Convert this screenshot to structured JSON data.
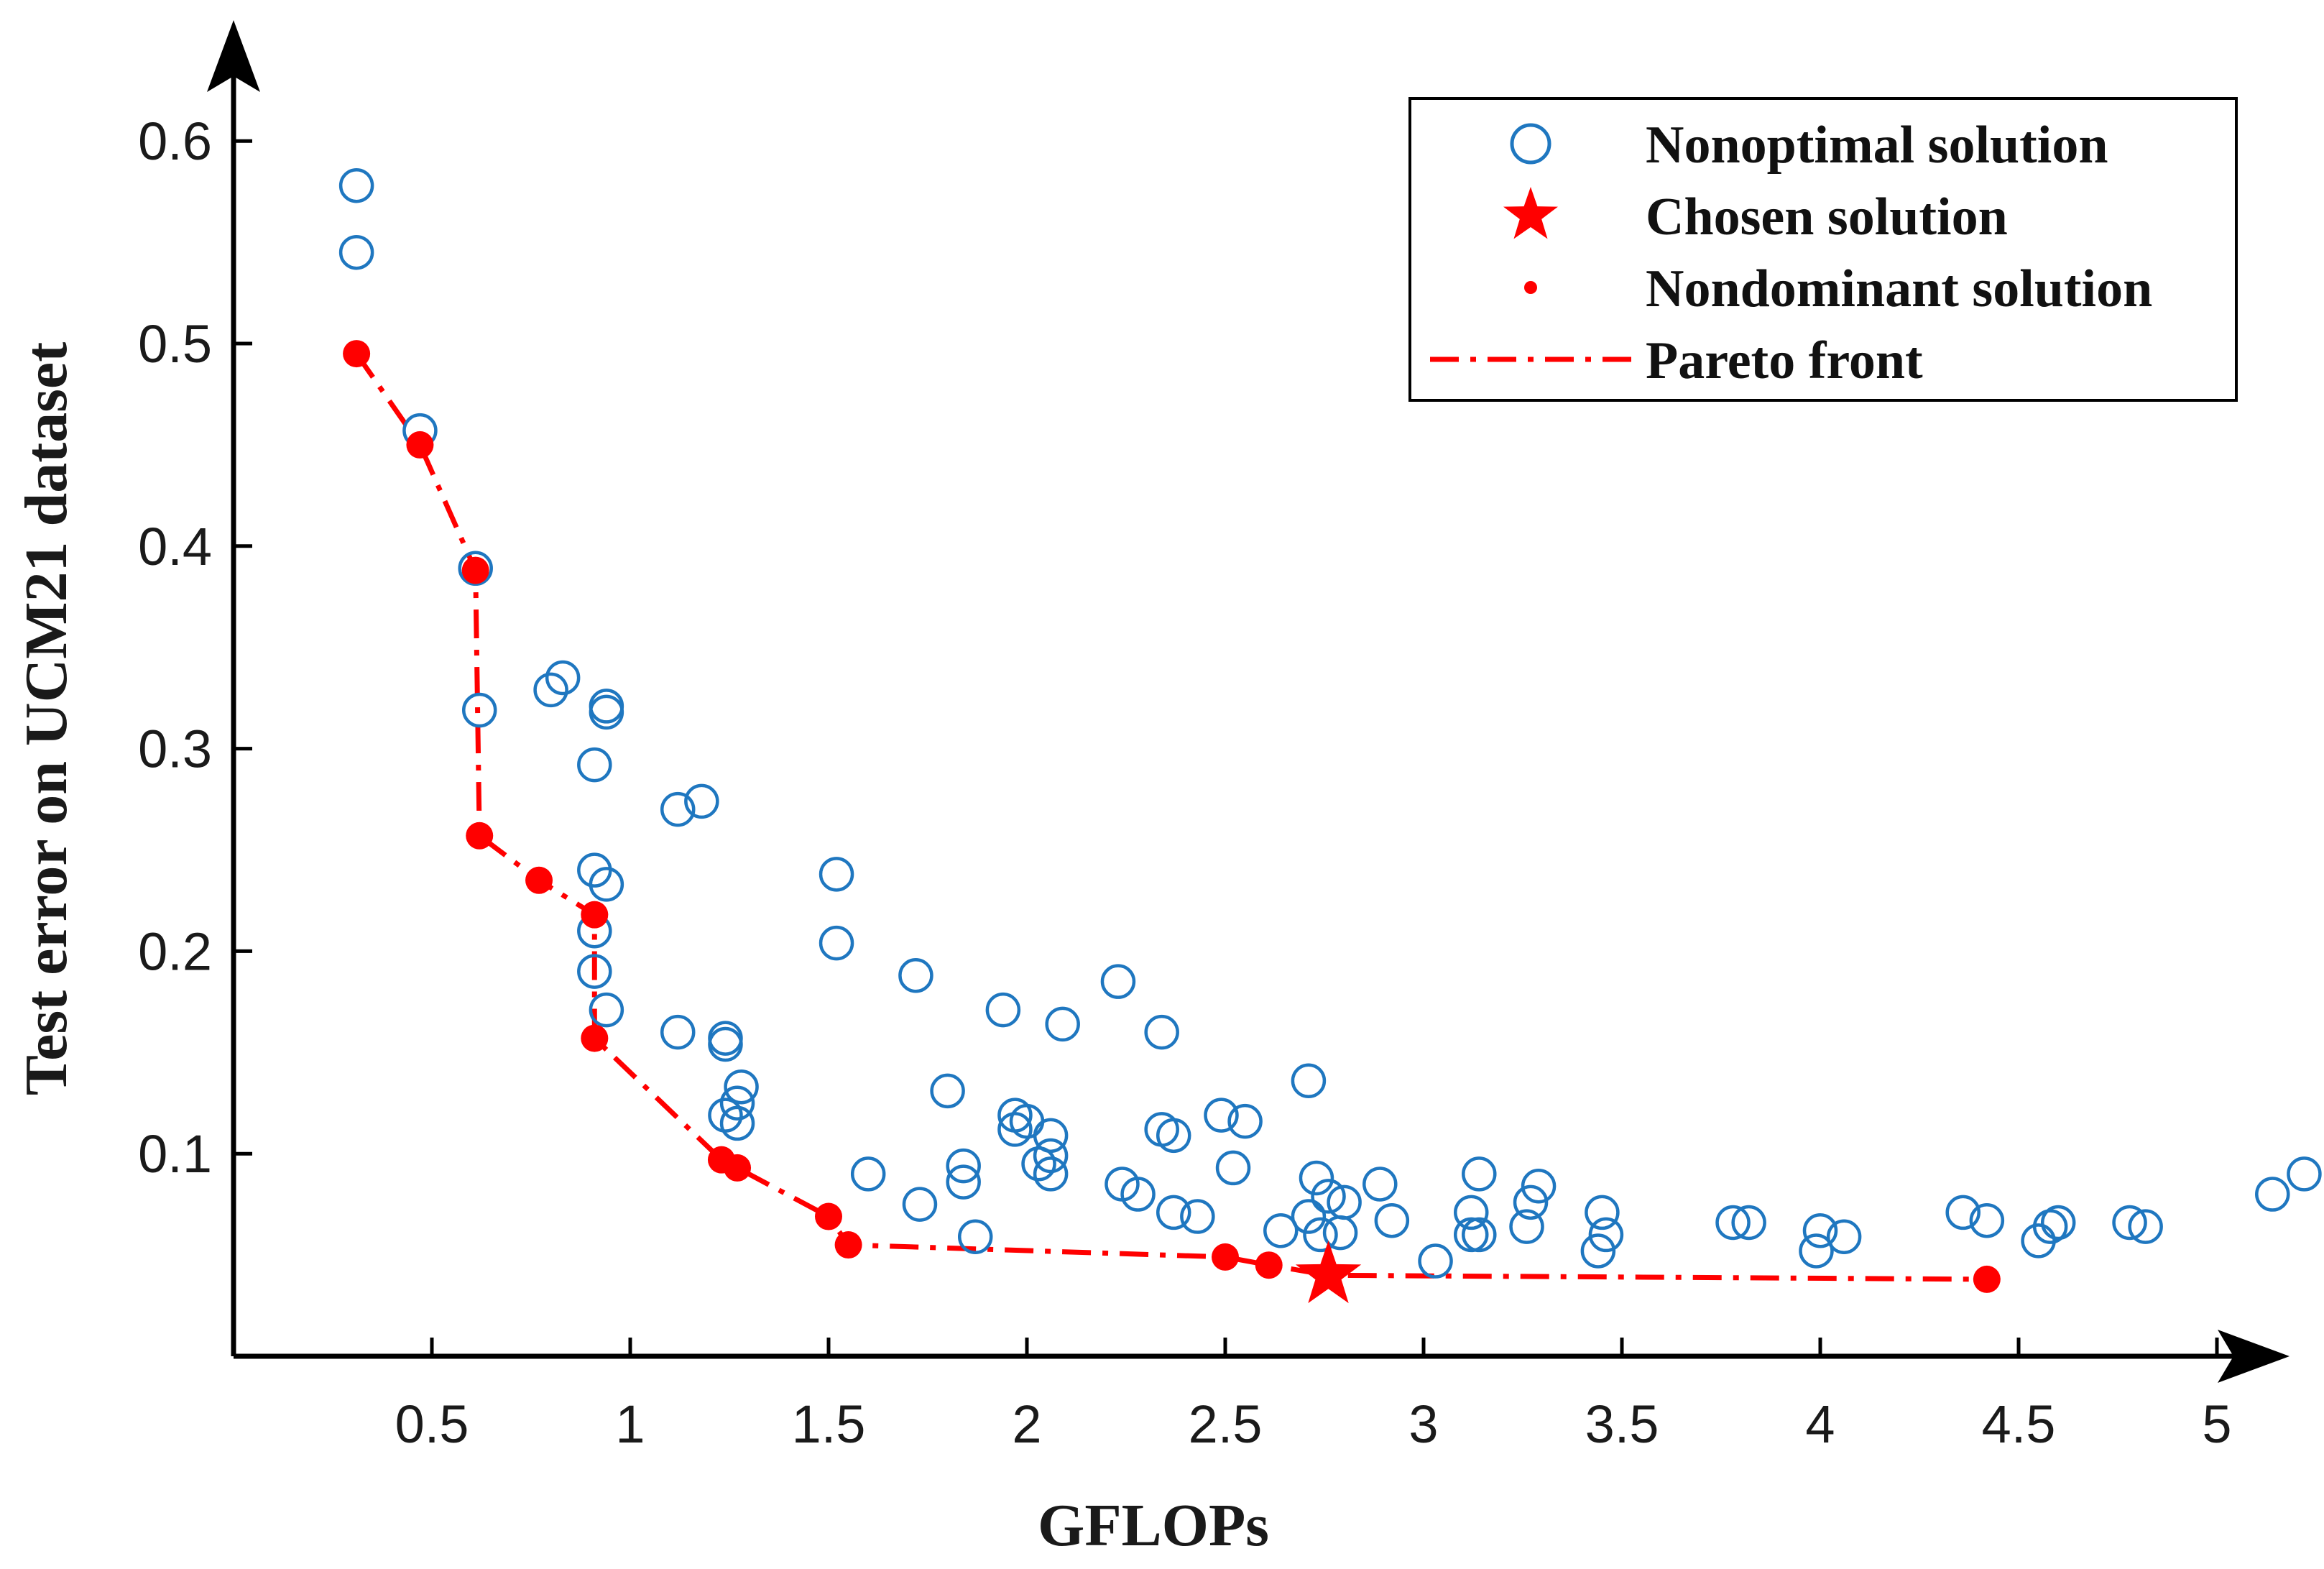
{
  "chart_data": {
    "type": "scatter",
    "title": "",
    "xlabel": "GFLOPs",
    "ylabel": "Test error on UCM21 dataset",
    "xlim": [
      0,
      5.2
    ],
    "ylim": [
      0,
      0.65
    ],
    "x_ticks": [
      "0.5",
      "1",
      "1.5",
      "2",
      "2.5",
      "3",
      "3.5",
      "4",
      "4.5",
      "5"
    ],
    "y_ticks": [
      "0.1",
      "0.2",
      "0.3",
      "0.4",
      "0.5",
      "0.6"
    ],
    "grid": false,
    "legend_position": "top-right",
    "colors": {
      "nonoptimal": "#1f77c0",
      "pareto": "#ff0000",
      "axis": "#000000"
    },
    "series": [
      {
        "name": "Nonoptimal solution",
        "marker": "open-circle",
        "points": [
          [
            0.31,
            0.578
          ],
          [
            0.31,
            0.545
          ],
          [
            0.47,
            0.457
          ],
          [
            0.61,
            0.389
          ],
          [
            0.62,
            0.319
          ],
          [
            0.8,
            0.329
          ],
          [
            0.83,
            0.335
          ],
          [
            0.94,
            0.321
          ],
          [
            0.94,
            0.318
          ],
          [
            0.91,
            0.292
          ],
          [
            1.12,
            0.27
          ],
          [
            1.18,
            0.274
          ],
          [
            0.91,
            0.24
          ],
          [
            0.94,
            0.233
          ],
          [
            0.91,
            0.21
          ],
          [
            0.91,
            0.19
          ],
          [
            0.94,
            0.171
          ],
          [
            1.12,
            0.16
          ],
          [
            1.24,
            0.157
          ],
          [
            1.24,
            0.154
          ],
          [
            1.28,
            0.133
          ],
          [
            1.27,
            0.125
          ],
          [
            1.27,
            0.115
          ],
          [
            1.24,
            0.119
          ],
          [
            1.52,
            0.238
          ],
          [
            1.52,
            0.204
          ],
          [
            1.72,
            0.188
          ],
          [
            1.6,
            0.09
          ],
          [
            1.73,
            0.075
          ],
          [
            1.8,
            0.131
          ],
          [
            1.84,
            0.094
          ],
          [
            1.84,
            0.086
          ],
          [
            1.87,
            0.059
          ],
          [
            1.94,
            0.171
          ],
          [
            1.97,
            0.119
          ],
          [
            1.97,
            0.112
          ],
          [
            2.0,
            0.116
          ],
          [
            2.06,
            0.109
          ],
          [
            2.06,
            0.099
          ],
          [
            2.06,
            0.09
          ],
          [
            2.03,
            0.095
          ],
          [
            2.09,
            0.164
          ],
          [
            2.23,
            0.185
          ],
          [
            2.24,
            0.085
          ],
          [
            2.28,
            0.08
          ],
          [
            2.34,
            0.16
          ],
          [
            2.34,
            0.112
          ],
          [
            2.37,
            0.109
          ],
          [
            2.37,
            0.071
          ],
          [
            2.43,
            0.069
          ],
          [
            2.49,
            0.119
          ],
          [
            2.55,
            0.116
          ],
          [
            2.52,
            0.093
          ],
          [
            2.64,
            0.062
          ],
          [
            2.71,
            0.136
          ],
          [
            2.73,
            0.088
          ],
          [
            2.71,
            0.069
          ],
          [
            2.76,
            0.079
          ],
          [
            2.74,
            0.06
          ],
          [
            2.79,
            0.061
          ],
          [
            2.8,
            0.076
          ],
          [
            2.89,
            0.085
          ],
          [
            2.92,
            0.067
          ],
          [
            3.03,
            0.047
          ],
          [
            3.14,
            0.09
          ],
          [
            3.12,
            0.071
          ],
          [
            3.12,
            0.06
          ],
          [
            3.14,
            0.06
          ],
          [
            3.29,
            0.084
          ],
          [
            3.27,
            0.076
          ],
          [
            3.26,
            0.064
          ],
          [
            3.45,
            0.071
          ],
          [
            3.46,
            0.06
          ],
          [
            3.44,
            0.052
          ],
          [
            3.78,
            0.066
          ],
          [
            3.82,
            0.066
          ],
          [
            4.0,
            0.062
          ],
          [
            3.99,
            0.052
          ],
          [
            4.06,
            0.059
          ],
          [
            4.36,
            0.071
          ],
          [
            4.42,
            0.067
          ],
          [
            4.55,
            0.057
          ],
          [
            4.58,
            0.064
          ],
          [
            4.6,
            0.066
          ],
          [
            4.78,
            0.066
          ],
          [
            4.82,
            0.064
          ],
          [
            5.14,
            0.08
          ],
          [
            5.22,
            0.09
          ]
        ]
      },
      {
        "name": "Nondominant solution",
        "marker": "filled-dot",
        "points": [
          [
            0.31,
            0.495
          ],
          [
            0.47,
            0.45
          ],
          [
            0.61,
            0.388
          ],
          [
            0.62,
            0.257
          ],
          [
            0.77,
            0.235
          ],
          [
            0.91,
            0.218
          ],
          [
            0.91,
            0.157
          ],
          [
            1.23,
            0.097
          ],
          [
            1.27,
            0.093
          ],
          [
            1.5,
            0.069
          ],
          [
            1.55,
            0.055
          ],
          [
            2.5,
            0.049
          ],
          [
            2.61,
            0.045
          ],
          [
            4.42,
            0.038
          ]
        ]
      },
      {
        "name": "Chosen solution",
        "marker": "star",
        "points": [
          [
            2.76,
            0.04
          ]
        ]
      },
      {
        "name": "Pareto front",
        "marker": "dash-dot-line",
        "points": [
          [
            0.31,
            0.495
          ],
          [
            0.47,
            0.45
          ],
          [
            0.61,
            0.388
          ],
          [
            0.62,
            0.257
          ],
          [
            0.77,
            0.235
          ],
          [
            0.91,
            0.218
          ],
          [
            0.91,
            0.157
          ],
          [
            1.23,
            0.097
          ],
          [
            1.27,
            0.093
          ],
          [
            1.5,
            0.069
          ],
          [
            1.55,
            0.055
          ],
          [
            2.5,
            0.049
          ],
          [
            2.61,
            0.045
          ],
          [
            2.76,
            0.04
          ],
          [
            4.42,
            0.038
          ]
        ]
      }
    ],
    "legend": [
      {
        "label": "Nonoptimal solution",
        "marker": "open-circle"
      },
      {
        "label": "Chosen solution",
        "marker": "star"
      },
      {
        "label": "Nondominant solution",
        "marker": "filled-dot"
      },
      {
        "label": "Pareto front",
        "marker": "dash-dot-line"
      }
    ]
  }
}
